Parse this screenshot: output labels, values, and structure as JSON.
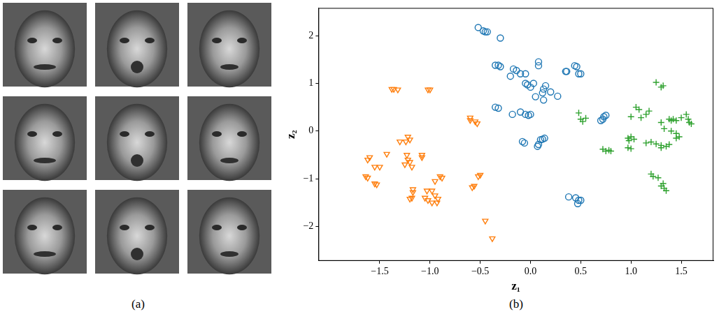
{
  "figure": {
    "panel_labels": [
      "(a)",
      "(b)"
    ]
  },
  "chart_data": {
    "type": "scatter",
    "x_label": "z₁",
    "y_label": "z₂",
    "xlim": [
      -2.11,
      1.82
    ],
    "ylim": [
      -2.72,
      2.58
    ],
    "xticks": [
      {
        "value": -1.5,
        "label": "−1.5"
      },
      {
        "value": -1.0,
        "label": "−1.0"
      },
      {
        "value": -0.5,
        "label": "−0.5"
      },
      {
        "value": 0,
        "label": "0.0"
      },
      {
        "value": 0.5,
        "label": "0.5"
      },
      {
        "value": 1.0,
        "label": "1.0"
      },
      {
        "value": 1.5,
        "label": "1.5"
      }
    ],
    "yticks": [
      {
        "value": -2,
        "label": "−2"
      },
      {
        "value": -1,
        "label": "−1"
      },
      0,
      1,
      2
    ],
    "grid": false,
    "series": [
      {
        "color": "#1f77b4",
        "marker": "circle_open",
        "points": [
          [
            -0.52,
            2.17
          ],
          [
            -0.47,
            2.1
          ],
          [
            -0.45,
            2.08
          ],
          [
            -0.43,
            2.08
          ],
          [
            -0.3,
            1.95
          ],
          [
            -0.35,
            1.38
          ],
          [
            -0.32,
            1.38
          ],
          [
            -0.3,
            1.35
          ],
          [
            -0.17,
            1.3
          ],
          [
            -0.14,
            1.27
          ],
          [
            -0.2,
            1.15
          ],
          [
            -0.1,
            1.2
          ],
          [
            -0.05,
            1.2
          ],
          [
            0.08,
            1.45
          ],
          [
            0.08,
            1.37
          ],
          [
            0.35,
            1.25
          ],
          [
            0.36,
            1.25
          ],
          [
            0.44,
            1.37
          ],
          [
            0.46,
            1.35
          ],
          [
            0.48,
            1.2
          ],
          [
            0.5,
            1.2
          ],
          [
            -0.05,
            1.0
          ],
          [
            -0.03,
            0.97
          ],
          [
            0.0,
            0.92
          ],
          [
            0.03,
            1.0
          ],
          [
            0.12,
            0.8
          ],
          [
            0.13,
            0.88
          ],
          [
            0.15,
            0.95
          ],
          [
            0.2,
            0.82
          ],
          [
            0.27,
            0.73
          ],
          [
            0.05,
            0.72
          ],
          [
            0.13,
            0.65
          ],
          [
            -0.35,
            0.5
          ],
          [
            -0.32,
            0.48
          ],
          [
            -0.18,
            0.35
          ],
          [
            -0.1,
            0.4
          ],
          [
            -0.05,
            0.35
          ],
          [
            -0.02,
            0.33
          ],
          [
            0.0,
            0.35
          ],
          [
            -0.08,
            -0.22
          ],
          [
            -0.06,
            -0.25
          ],
          [
            0.1,
            -0.18
          ],
          [
            0.12,
            -0.17
          ],
          [
            0.14,
            -0.15
          ],
          [
            0.08,
            -0.28
          ],
          [
            0.07,
            -0.32
          ],
          [
            0.7,
            0.22
          ],
          [
            0.72,
            0.25
          ],
          [
            0.73,
            0.3
          ],
          [
            0.75,
            0.33
          ],
          [
            0.38,
            -1.38
          ],
          [
            0.45,
            -1.4
          ],
          [
            0.48,
            -1.45
          ],
          [
            0.47,
            -1.52
          ],
          [
            0.5,
            -1.45
          ]
        ]
      },
      {
        "color": "#ff7f0e",
        "marker": "triangle_down_open",
        "points": [
          [
            -1.38,
            0.88
          ],
          [
            -1.36,
            0.88
          ],
          [
            -1.32,
            0.87
          ],
          [
            -1.02,
            0.87
          ],
          [
            -1.0,
            0.87
          ],
          [
            -0.6,
            0.28
          ],
          [
            -0.6,
            0.23
          ],
          [
            -0.55,
            0.2
          ],
          [
            -0.53,
            0.16
          ],
          [
            -1.24,
            -0.22
          ],
          [
            -1.22,
            -0.12
          ],
          [
            -1.2,
            -0.18
          ],
          [
            -1.3,
            -0.22
          ],
          [
            -1.08,
            -0.5
          ],
          [
            -1.08,
            -0.55
          ],
          [
            -1.23,
            -0.5
          ],
          [
            -1.43,
            -0.48
          ],
          [
            -1.22,
            -0.6
          ],
          [
            -1.2,
            -0.65
          ],
          [
            -1.25,
            -0.7
          ],
          [
            -1.18,
            -0.75
          ],
          [
            -1.6,
            -0.55
          ],
          [
            -1.62,
            -0.6
          ],
          [
            -1.55,
            -0.75
          ],
          [
            -1.5,
            -0.75
          ],
          [
            -1.64,
            -0.95
          ],
          [
            -1.62,
            -0.98
          ],
          [
            -1.55,
            -1.1
          ],
          [
            -1.53,
            -1.12
          ],
          [
            -0.9,
            -0.95
          ],
          [
            -0.88,
            -0.98
          ],
          [
            -0.95,
            -1.05
          ],
          [
            -0.5,
            -0.92
          ],
          [
            -0.52,
            -0.95
          ],
          [
            -0.56,
            -1.15
          ],
          [
            -0.58,
            -1.18
          ],
          [
            -1.17,
            -1.22
          ],
          [
            -1.17,
            -1.28
          ],
          [
            -1.03,
            -1.25
          ],
          [
            -0.98,
            -1.25
          ],
          [
            -1.18,
            -1.4
          ],
          [
            -1.2,
            -1.42
          ],
          [
            -1.05,
            -1.4
          ],
          [
            -1.02,
            -1.45
          ],
          [
            -0.95,
            -1.35
          ],
          [
            -0.92,
            -1.42
          ],
          [
            -0.98,
            -1.5
          ],
          [
            -0.93,
            -1.5
          ],
          [
            -0.45,
            -1.88
          ],
          [
            -0.38,
            -2.25
          ]
        ]
      },
      {
        "color": "#2ca02c",
        "marker": "plus",
        "points": [
          [
            1.25,
            1.02
          ],
          [
            1.3,
            0.92
          ],
          [
            1.32,
            0.95
          ],
          [
            1.05,
            0.5
          ],
          [
            1.08,
            0.45
          ],
          [
            1.15,
            0.35
          ],
          [
            1.18,
            0.42
          ],
          [
            0.48,
            0.38
          ],
          [
            0.5,
            0.25
          ],
          [
            0.52,
            0.2
          ],
          [
            0.55,
            0.27
          ],
          [
            1.0,
            0.3
          ],
          [
            1.1,
            0.28
          ],
          [
            1.3,
            0.18
          ],
          [
            1.38,
            0.25
          ],
          [
            1.42,
            0.25
          ],
          [
            1.4,
            0.22
          ],
          [
            1.45,
            0.22
          ],
          [
            1.5,
            0.28
          ],
          [
            1.55,
            0.35
          ],
          [
            1.57,
            0.25
          ],
          [
            1.58,
            0.18
          ],
          [
            1.6,
            0.15
          ],
          [
            1.33,
            0.05
          ],
          [
            1.4,
            0.0
          ],
          [
            1.45,
            -0.05
          ],
          [
            1.48,
            -0.12
          ],
          [
            0.97,
            -0.15
          ],
          [
            1.0,
            -0.12
          ],
          [
            0.98,
            -0.2
          ],
          [
            1.03,
            -0.17
          ],
          [
            1.15,
            -0.25
          ],
          [
            1.2,
            -0.23
          ],
          [
            1.25,
            -0.27
          ],
          [
            1.3,
            -0.3
          ],
          [
            1.35,
            -0.32
          ],
          [
            1.3,
            -0.35
          ],
          [
            1.38,
            -0.28
          ],
          [
            1.45,
            -0.15
          ],
          [
            0.97,
            -0.35
          ],
          [
            1.0,
            -0.37
          ],
          [
            0.72,
            -0.38
          ],
          [
            0.75,
            -0.42
          ],
          [
            0.78,
            -0.4
          ],
          [
            0.8,
            -0.42
          ],
          [
            1.2,
            -0.9
          ],
          [
            1.22,
            -0.95
          ],
          [
            1.27,
            -0.98
          ],
          [
            1.32,
            -1.1
          ],
          [
            1.33,
            -1.2
          ],
          [
            1.35,
            -1.25
          ],
          [
            1.3,
            -1.15
          ]
        ]
      }
    ]
  }
}
